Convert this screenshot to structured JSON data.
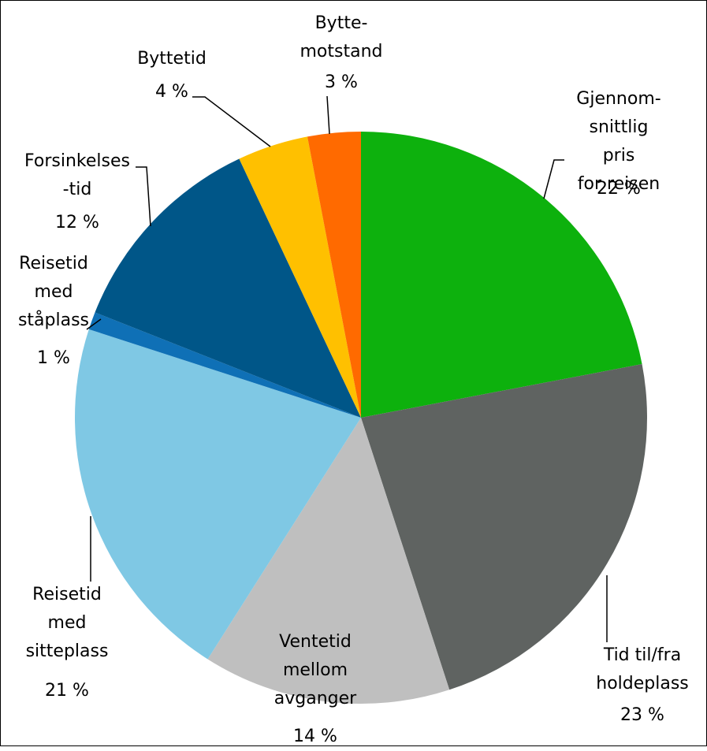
{
  "chart_data": {
    "type": "pie",
    "categories": [
      "Gjennom-\nsnittlig pris\nfor reisen",
      "Tid til/fra\nholdeplass",
      "Ventetid\nmellom\navganger",
      "Reisetid\nmed\nsitteplass",
      "Reisetid\nmed\nståplass",
      "Forsinkelses\n-tid",
      "Byttetid",
      "Bytte-\nmotstand"
    ],
    "values": [
      22,
      23,
      14,
      21,
      1,
      12,
      4,
      3
    ],
    "value_labels": [
      "22 %",
      "23 %",
      "14 %",
      "21 %",
      "1 %",
      "12 %",
      "4 %",
      "3 %"
    ],
    "colors": [
      "#0db10d",
      "#5f6361",
      "#bfbfbf",
      "#7fc8e4",
      "#0f70b6",
      "#005688",
      "#ffc000",
      "#ff6a00"
    ]
  }
}
